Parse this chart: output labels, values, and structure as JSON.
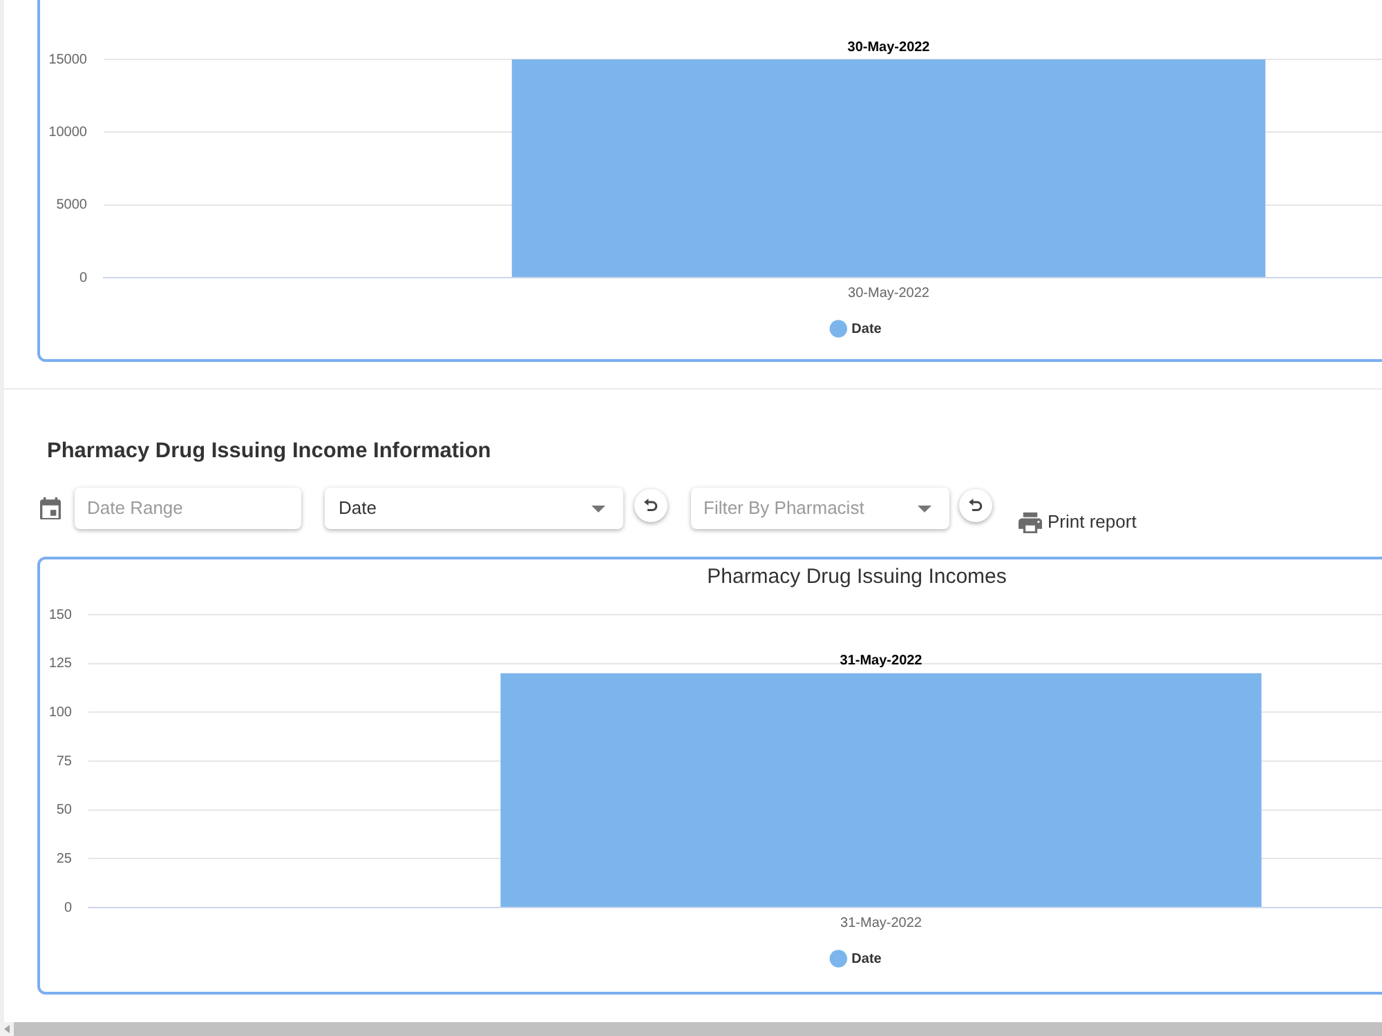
{
  "chart_data": [
    {
      "type": "bar",
      "categories": [
        "30-May-2022"
      ],
      "series": [
        {
          "name": "Date",
          "color": "#7cb5ec",
          "values": [
            15000
          ],
          "value_labels": [
            "30-May-2022"
          ]
        }
      ],
      "ylim": [
        0,
        15000
      ],
      "yticks": [
        0,
        5000,
        10000,
        15000
      ],
      "grid": "y",
      "legend": "bottom"
    },
    {
      "type": "other",
      "title": "Pharmacy Drug Issuing Income Information",
      "annotations": [
        "Date Range",
        "Date",
        "Filter By Pharmacist",
        "Print report"
      ]
    },
    {
      "type": "bar",
      "title": "Pharmacy Drug Issuing Incomes",
      "categories": [
        "31-May-2022"
      ],
      "series": [
        {
          "name": "Date",
          "color": "#7cb5ec",
          "values": [
            120
          ],
          "value_labels": [
            "31-May-2022"
          ]
        }
      ],
      "ylim": [
        0,
        150
      ],
      "yticks": [
        0,
        25,
        50,
        75,
        100,
        125,
        150
      ],
      "grid": "y",
      "legend": "bottom"
    }
  ]
}
